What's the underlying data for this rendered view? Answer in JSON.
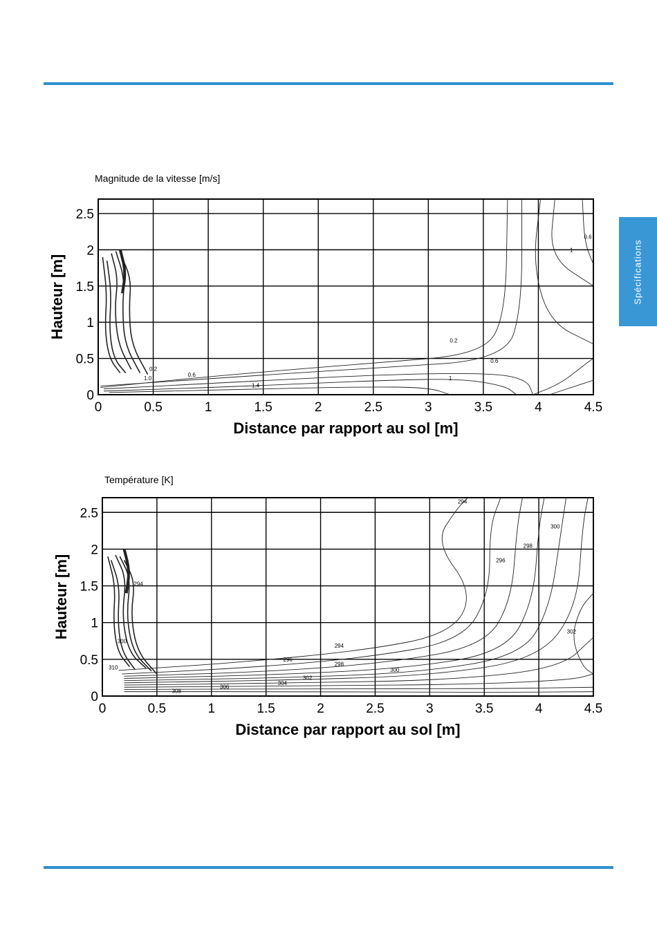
{
  "side_tab": {
    "label": "Spécifications"
  },
  "chart_data": [
    {
      "type": "contour",
      "title": "Magnitude de la vitesse [m/s]",
      "xlabel": "Distance par rapport au sol [m]",
      "ylabel": "Hauteur [m]",
      "xlim": [
        0,
        4.5
      ],
      "ylim": [
        0,
        2.7
      ],
      "xticks": [
        0,
        0.5,
        1,
        1.5,
        2,
        2.5,
        3,
        3.5,
        4,
        4.5
      ],
      "yticks": [
        0,
        0.5,
        1,
        1.5,
        2,
        2.5
      ],
      "grid": true,
      "contour_labels": [
        {
          "text": "0.2",
          "x": 3.23,
          "y": 0.72
        },
        {
          "text": "0.6",
          "x": 3.6,
          "y": 0.44
        },
        {
          "text": "1",
          "x": 3.2,
          "y": 0.2
        },
        {
          "text": "0.2",
          "x": 0.5,
          "y": 0.33
        },
        {
          "text": "0.6",
          "x": 0.85,
          "y": 0.25
        },
        {
          "text": "1.0",
          "x": 0.45,
          "y": 0.2
        },
        {
          "text": "1.4",
          "x": 1.43,
          "y": 0.1
        },
        {
          "text": "1",
          "x": 4.3,
          "y": 1.97
        },
        {
          "text": "0.6",
          "x": 4.45,
          "y": 2.15
        }
      ]
    },
    {
      "type": "contour",
      "title": "Température [K]",
      "xlabel": "Distance par rapport au sol [m]",
      "ylabel": "Hauteur [m]",
      "xlim": [
        0,
        4.5
      ],
      "ylim": [
        0,
        2.7
      ],
      "xticks": [
        0,
        0.5,
        1,
        1.5,
        2,
        2.5,
        3,
        3.5,
        4,
        4.5
      ],
      "yticks": [
        0,
        0.5,
        1,
        1.5,
        2,
        2.5
      ],
      "grid": true,
      "contour_labels": [
        {
          "text": "294",
          "x": 2.17,
          "y": 0.66
        },
        {
          "text": "296",
          "x": 1.7,
          "y": 0.47
        },
        {
          "text": "298",
          "x": 2.17,
          "y": 0.41
        },
        {
          "text": "300",
          "x": 2.68,
          "y": 0.33
        },
        {
          "text": "302",
          "x": 1.88,
          "y": 0.22
        },
        {
          "text": "304",
          "x": 1.65,
          "y": 0.15
        },
        {
          "text": "306",
          "x": 1.12,
          "y": 0.1
        },
        {
          "text": "308",
          "x": 0.68,
          "y": 0.04
        },
        {
          "text": "296",
          "x": 3.65,
          "y": 1.82
        },
        {
          "text": "298",
          "x": 3.9,
          "y": 2.02
        },
        {
          "text": "300",
          "x": 4.15,
          "y": 2.28
        },
        {
          "text": "302",
          "x": 4.3,
          "y": 0.85
        },
        {
          "text": "294",
          "x": 3.3,
          "y": 2.62
        },
        {
          "text": "294",
          "x": 0.33,
          "y": 1.5
        },
        {
          "text": "300",
          "x": 0.18,
          "y": 0.72
        },
        {
          "text": "310",
          "x": 0.1,
          "y": 0.36
        }
      ]
    }
  ]
}
